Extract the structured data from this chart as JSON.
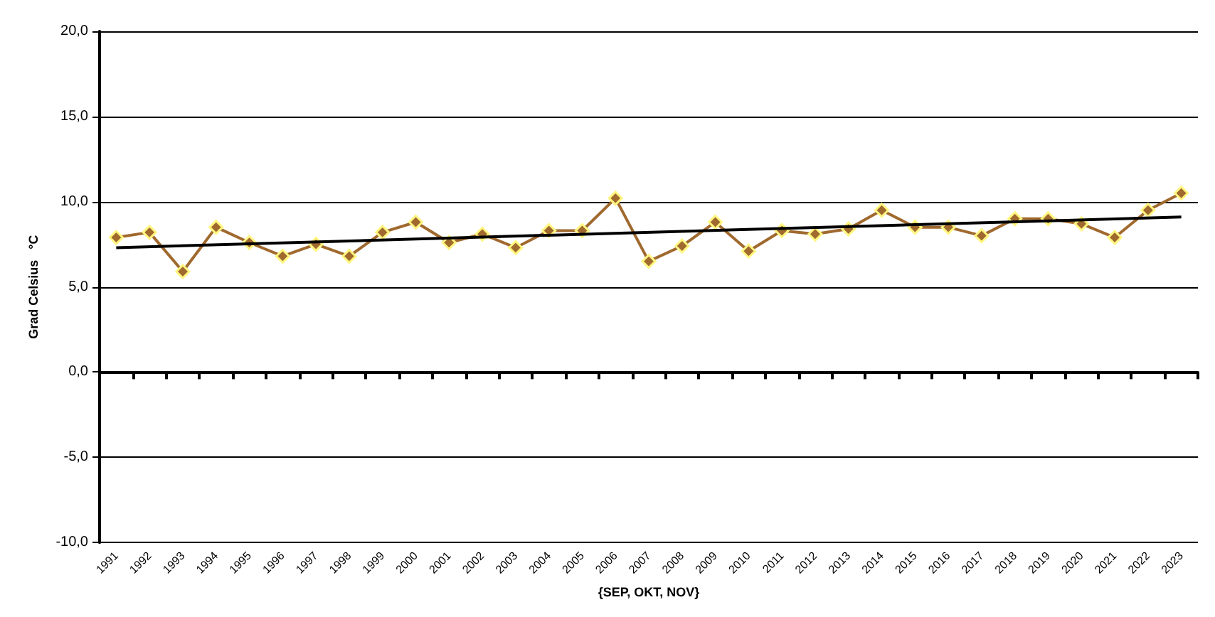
{
  "chart_data": {
    "type": "line",
    "xlabel": "{SEP, OKT, NOV}",
    "ylabel": "Grad Celsius   °C",
    "categories": [
      "1991",
      "1992",
      "1993",
      "1994",
      "1995",
      "1996",
      "1997",
      "1998",
      "1999",
      "2000",
      "2001",
      "2002",
      "2003",
      "2004",
      "2005",
      "2006",
      "2007",
      "2008",
      "2009",
      "2010",
      "2011",
      "2012",
      "2013",
      "2014",
      "2015",
      "2016",
      "2017",
      "2018",
      "2019",
      "2020",
      "2021",
      "2022",
      "2023"
    ],
    "series": [
      {
        "color": "#a0692e",
        "marker": "diamond",
        "values": [
          7.9,
          8.2,
          5.9,
          8.5,
          7.6,
          6.8,
          7.5,
          6.8,
          8.2,
          8.8,
          7.6,
          8.1,
          7.3,
          8.3,
          8.3,
          10.2,
          6.5,
          7.4,
          8.8,
          7.1,
          8.3,
          8.1,
          8.4,
          9.5,
          8.5,
          8.5,
          8.0,
          9.0,
          9.0,
          8.7,
          7.9,
          9.5,
          10.5
        ]
      },
      {
        "type": "line",
        "color": "#000000",
        "marker": "none",
        "values": [
          7.3,
          null,
          null,
          null,
          null,
          null,
          null,
          null,
          null,
          null,
          null,
          null,
          null,
          null,
          null,
          null,
          null,
          null,
          null,
          null,
          null,
          null,
          null,
          null,
          null,
          null,
          null,
          null,
          null,
          null,
          null,
          null,
          9.1
        ]
      }
    ],
    "ylim": [
      -10,
      20
    ],
    "yticks": [
      {
        "value": -10,
        "label": "-10,0"
      },
      {
        "value": -5,
        "label": "-5,0"
      },
      {
        "value": 0,
        "label": "0,0"
      },
      {
        "value": 5,
        "label": "5,0"
      },
      {
        "value": 10,
        "label": "10,0"
      },
      {
        "value": 15,
        "label": "15,0"
      },
      {
        "value": 20,
        "label": "20,0"
      }
    ],
    "grid": "y"
  }
}
